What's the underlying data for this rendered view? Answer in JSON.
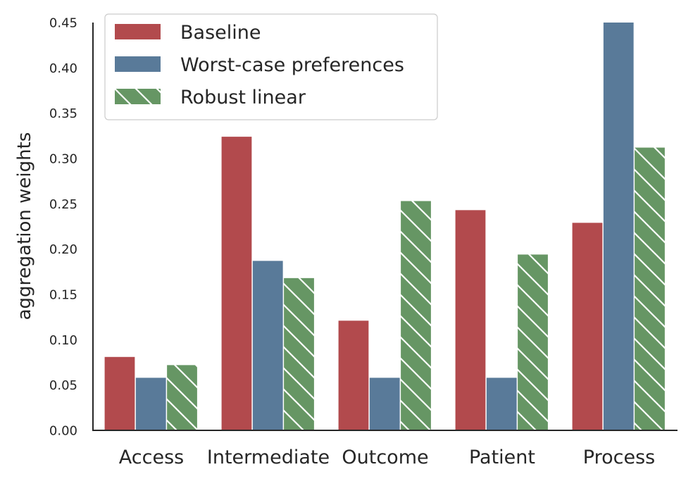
{
  "chart_data": {
    "type": "bar",
    "categories": [
      "Access",
      "Intermediate",
      "Outcome",
      "Patient",
      "Process"
    ],
    "series": [
      {
        "name": "Baseline",
        "values": [
          0.081,
          0.324,
          0.121,
          0.243,
          0.229
        ],
        "color": "#b24a4d",
        "hatch": false
      },
      {
        "name": "Worst-case preferences",
        "values": [
          0.058,
          0.187,
          0.058,
          0.058,
          0.45
        ],
        "color": "#597a99",
        "hatch": false
      },
      {
        "name": "Robust linear",
        "values": [
          0.072,
          0.168,
          0.253,
          0.194,
          0.312
        ],
        "color": "#669664",
        "hatch": true
      }
    ],
    "title": "",
    "xlabel": "",
    "ylabel": "aggregation weights",
    "ylim": [
      0,
      0.45
    ],
    "yticks": [
      "0.00",
      "0.05",
      "0.10",
      "0.15",
      "0.20",
      "0.25",
      "0.30",
      "0.35",
      "0.40",
      "0.45"
    ],
    "grid": false,
    "legend_position": "top-left"
  }
}
